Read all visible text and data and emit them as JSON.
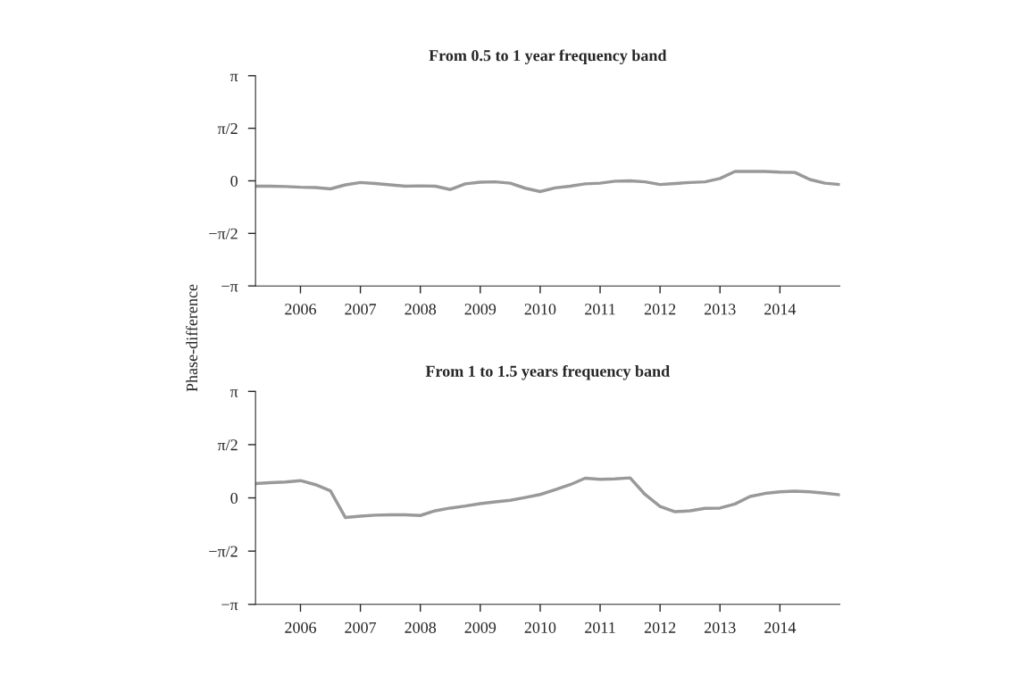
{
  "chart_data": [
    {
      "type": "line",
      "title": "From 0.5 to 1 year frequency band",
      "ylabel": "Phase-difference",
      "x": [
        2005.25,
        2005.5,
        2005.75,
        2006,
        2006.25,
        2006.5,
        2006.75,
        2007,
        2007.25,
        2007.5,
        2007.75,
        2008,
        2008.25,
        2008.5,
        2008.75,
        2009,
        2009.25,
        2009.5,
        2009.75,
        2010,
        2010.25,
        2010.5,
        2010.75,
        2011,
        2011.25,
        2011.5,
        2011.75,
        2012,
        2012.25,
        2012.5,
        2012.75,
        2013,
        2013.25,
        2013.5,
        2013.75,
        2014,
        2014.25,
        2014.5,
        2014.75,
        2015
      ],
      "series": [
        {
          "color": "#999999",
          "values": [
            -0.16,
            -0.16,
            -0.17,
            -0.19,
            -0.2,
            -0.24,
            -0.12,
            -0.05,
            -0.08,
            -0.12,
            -0.16,
            -0.15,
            -0.16,
            -0.26,
            -0.09,
            -0.04,
            -0.03,
            -0.07,
            -0.22,
            -0.32,
            -0.21,
            -0.16,
            -0.09,
            -0.07,
            -0.01,
            0,
            -0.03,
            -0.11,
            -0.08,
            -0.05,
            -0.03,
            0.07,
            0.28,
            0.28,
            0.28,
            0.26,
            0.25,
            0.04,
            -0.07,
            -0.11
          ]
        }
      ],
      "xlim": [
        2005.25,
        2015
      ],
      "xticks": [
        2006,
        2007,
        2008,
        2009,
        2010,
        2011,
        2012,
        2013,
        2014
      ],
      "ylim": [
        -3.14159,
        3.14159
      ],
      "yticks": [
        {
          "value": -3.14159,
          "label": "−π"
        },
        {
          "value": -1.5708,
          "label": "−π/2"
        },
        0,
        {
          "value": 1.5708,
          "label": "π/2"
        },
        {
          "value": 3.14159,
          "label": "π"
        }
      ],
      "grid": false,
      "legend": false
    },
    {
      "type": "line",
      "title": "From 1 to 1.5 years frequency band",
      "x": [
        2005.25,
        2005.5,
        2005.75,
        2006,
        2006.25,
        2006.5,
        2006.75,
        2007,
        2007.25,
        2007.5,
        2007.75,
        2008,
        2008.25,
        2008.5,
        2008.75,
        2009,
        2009.25,
        2009.5,
        2009.75,
        2010,
        2010.25,
        2010.5,
        2010.75,
        2011,
        2011.25,
        2011.5,
        2011.75,
        2012,
        2012.25,
        2012.5,
        2012.75,
        2013,
        2013.25,
        2013.5,
        2013.75,
        2014,
        2014.25,
        2014.5,
        2014.75,
        2015
      ],
      "series": [
        {
          "color": "#999999",
          "values": [
            0.42,
            0.45,
            0.47,
            0.51,
            0.39,
            0.21,
            -0.58,
            -0.54,
            -0.51,
            -0.5,
            -0.5,
            -0.52,
            -0.38,
            -0.3,
            -0.24,
            -0.17,
            -0.12,
            -0.07,
            0.01,
            0.1,
            0.24,
            0.39,
            0.58,
            0.55,
            0.56,
            0.59,
            0.1,
            -0.25,
            -0.41,
            -0.38,
            -0.31,
            -0.3,
            -0.18,
            0.04,
            0.13,
            0.18,
            0.2,
            0.18,
            0.14,
            0.09
          ]
        }
      ],
      "xlim": [
        2005.25,
        2015
      ],
      "xticks": [
        2006,
        2007,
        2008,
        2009,
        2010,
        2011,
        2012,
        2013,
        2014
      ],
      "ylim": [
        -3.14159,
        3.14159
      ],
      "yticks": [
        {
          "value": -3.14159,
          "label": "−π"
        },
        {
          "value": -1.5708,
          "label": "−π/2"
        },
        0,
        {
          "value": 1.5708,
          "label": "π/2"
        },
        {
          "value": 3.14159,
          "label": "π"
        }
      ],
      "grid": false,
      "legend": false
    }
  ]
}
